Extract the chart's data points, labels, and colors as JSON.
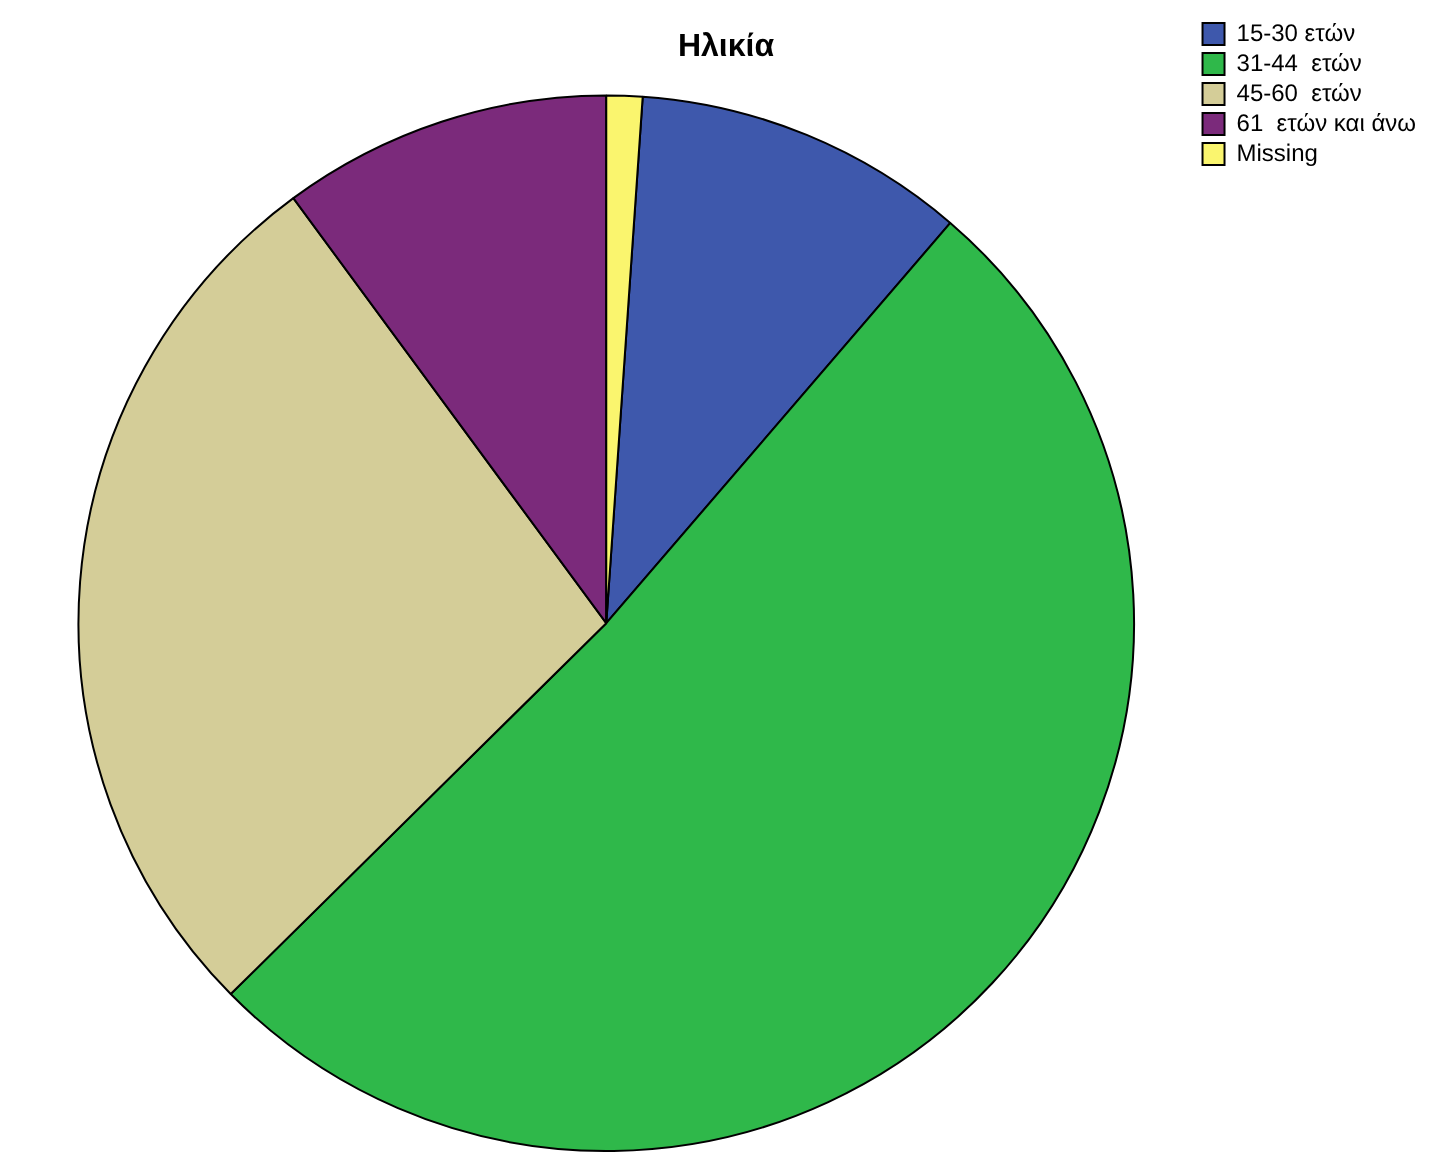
{
  "chart_data": {
    "type": "pie",
    "title": "Ηλικία",
    "categories": [
      "15-30 ετών",
      "31-44  ετών",
      "45-60  ετών",
      "61  ετών και άνω",
      "Missing"
    ],
    "values": [
      10.2,
      51.3,
      27.3,
      10.1,
      1.1
    ],
    "colors": [
      "#3e58ac",
      "#2fb84a",
      "#d4cd98",
      "#7b2a7b",
      "#faf56e"
    ],
    "legend": "top right"
  }
}
